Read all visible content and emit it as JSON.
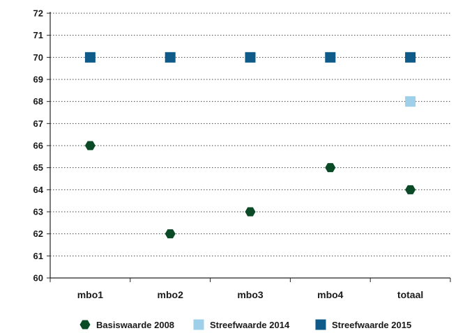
{
  "chart_data": {
    "type": "scatter",
    "categories": [
      "mbo1",
      "mbo2",
      "mbo3",
      "mbo4",
      "totaal"
    ],
    "series": [
      {
        "name": "Basiswaarde 2008",
        "marker": "hexagon",
        "color": "#0b4a26",
        "values": [
          66,
          62,
          63,
          65,
          64
        ]
      },
      {
        "name": "Streefwaarde 2014",
        "marker": "square",
        "color": "#9fd0ea",
        "values": [
          null,
          null,
          null,
          null,
          68
        ]
      },
      {
        "name": "Streefwaarde 2015",
        "marker": "square",
        "color": "#0e5b8a",
        "values": [
          70,
          70,
          70,
          70,
          70
        ]
      }
    ],
    "yticks": [
      60,
      61,
      62,
      63,
      64,
      65,
      66,
      67,
      68,
      69,
      70,
      71,
      72
    ],
    "ylim": [
      60,
      72
    ],
    "grid": "dotted-horizontal",
    "legend": "bottom"
  }
}
